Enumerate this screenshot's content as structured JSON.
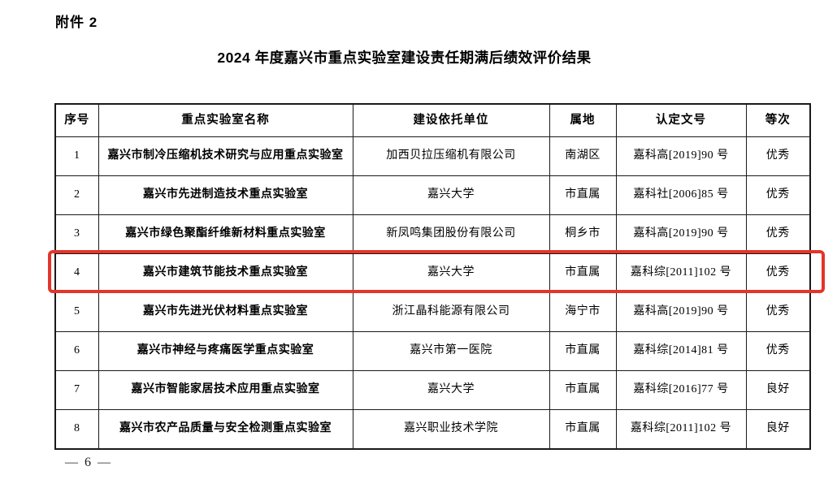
{
  "colors": {
    "highlight_red": "#e5342b"
  },
  "attachment_label": "附件 2",
  "title": "2024 年度嘉兴市重点实验室建设责任期满后绩效评价结果",
  "page_number": "— 6 —",
  "table": {
    "headers": [
      "序号",
      "重点实验室名称",
      "建设依托单位",
      "属地",
      "认定文号",
      "等次"
    ],
    "rows": [
      {
        "seq": "1",
        "name": "嘉兴市制冷压缩机技术研究与应用重点实验室",
        "unit": "加西贝拉压缩机有限公司",
        "region": "南湖区",
        "doc_no": "嘉科高[2019]90 号",
        "grade": "优秀"
      },
      {
        "seq": "2",
        "name": "嘉兴市先进制造技术重点实验室",
        "unit": "嘉兴大学",
        "region": "市直属",
        "doc_no": "嘉科社[2006]85 号",
        "grade": "优秀"
      },
      {
        "seq": "3",
        "name": "嘉兴市绿色聚酯纤维新材料重点实验室",
        "unit": "新凤鸣集团股份有限公司",
        "region": "桐乡市",
        "doc_no": "嘉科高[2019]90 号",
        "grade": "优秀"
      },
      {
        "seq": "4",
        "name": "嘉兴市建筑节能技术重点实验室",
        "unit": "嘉兴大学",
        "region": "市直属",
        "doc_no": "嘉科综[2011]102 号",
        "grade": "优秀",
        "highlighted": true
      },
      {
        "seq": "5",
        "name": "嘉兴市先进光伏材料重点实验室",
        "unit": "浙江晶科能源有限公司",
        "region": "海宁市",
        "doc_no": "嘉科高[2019]90 号",
        "grade": "优秀"
      },
      {
        "seq": "6",
        "name": "嘉兴市神经与疼痛医学重点实验室",
        "unit": "嘉兴市第一医院",
        "region": "市直属",
        "doc_no": "嘉科综[2014]81 号",
        "grade": "优秀"
      },
      {
        "seq": "7",
        "name": "嘉兴市智能家居技术应用重点实验室",
        "unit": "嘉兴大学",
        "region": "市直属",
        "doc_no": "嘉科综[2016]77 号",
        "grade": "良好"
      },
      {
        "seq": "8",
        "name": "嘉兴市农产品质量与安全检测重点实验室",
        "unit": "嘉兴职业技术学院",
        "region": "市直属",
        "doc_no": "嘉科综[2011]102 号",
        "grade": "良好"
      }
    ]
  }
}
